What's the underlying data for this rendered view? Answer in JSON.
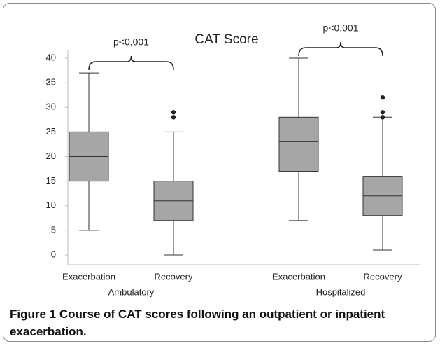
{
  "chart_data": {
    "type": "box",
    "title": "CAT Score",
    "categories": [
      "Exacerbation",
      "Recovery",
      "Exacerbation",
      "Recovery"
    ],
    "groups": [
      "Ambulatory",
      "Hospitalized"
    ],
    "color": "#a6a6a6",
    "boxes": [
      {
        "min": 5,
        "q1": 15,
        "median": 20,
        "q3": 25,
        "max": 37,
        "outliers": []
      },
      {
        "min": 0,
        "q1": 7,
        "median": 11,
        "q3": 15,
        "max": 25,
        "outliers": [
          28,
          29
        ]
      },
      {
        "min": 7,
        "q1": 17,
        "median": 23,
        "q3": 28,
        "max": 40,
        "outliers": []
      },
      {
        "min": 1,
        "q1": 8,
        "median": 12,
        "q3": 16,
        "max": 28,
        "outliers": [
          28,
          29,
          32
        ]
      }
    ],
    "annotations": [
      "p<0,001",
      "p<0,001"
    ],
    "ylim": [
      0,
      40
    ],
    "yticks": [
      0,
      5,
      10,
      15,
      20,
      25,
      30,
      35,
      40
    ]
  },
  "figure": {
    "label": "Figure 1",
    "caption": "Course of CAT scores following an outpatient or inpatient exacerbation."
  }
}
